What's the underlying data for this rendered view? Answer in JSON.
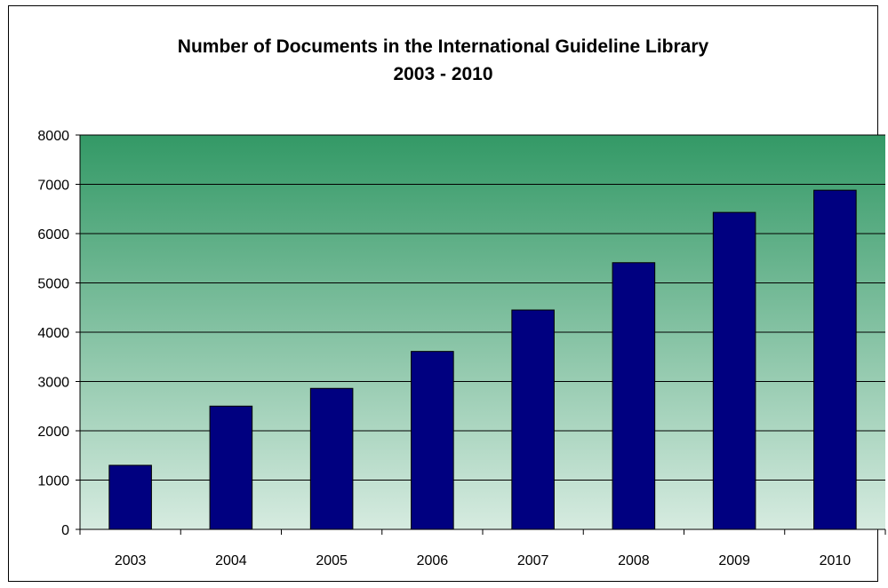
{
  "chart_data": {
    "type": "bar",
    "title": "Number of Documents in the International Guideline Library",
    "subtitle": "2003 - 2010",
    "xlabel": "",
    "ylabel": "",
    "categories": [
      "2003",
      "2004",
      "2005",
      "2006",
      "2007",
      "2008",
      "2009",
      "2010"
    ],
    "series": [
      {
        "values": [
          1300,
          2500,
          2860,
          3610,
          4450,
          5410,
          6430,
          6880
        ]
      }
    ],
    "ylim": [
      0,
      8000
    ],
    "yticks": [
      0,
      1000,
      2000,
      3000,
      4000,
      5000,
      6000,
      7000,
      8000
    ],
    "grid": true,
    "legend": "none",
    "colors": {
      "bar": "#000080",
      "plot_bg_top": "#339966",
      "plot_bg_bottom": "#d6ebe0",
      "gridline": "#000000"
    }
  }
}
